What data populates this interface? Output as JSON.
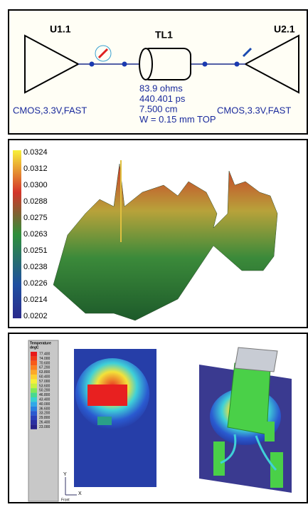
{
  "schematic": {
    "driver": "U1.1",
    "line": "TL1",
    "receiver": "U2.1",
    "line_props": [
      "83.9 ohms",
      "440.401 ps",
      "7.500 cm",
      "W = 0.15 mm TOP"
    ],
    "driver_model": "CMOS,3.3V,FAST",
    "receiver_model": "CMOS,3.3V,FAST"
  },
  "surface_plot": {
    "scale": [
      "0.0324",
      "0.0312",
      "0.0300",
      "0.0288",
      "0.0275",
      "0.0263",
      "0.0251",
      "0.0238",
      "0.0226",
      "0.0214",
      "0.0202"
    ]
  },
  "thermal": {
    "legend_title": "Temperature",
    "legend_unit": "degC",
    "scale": [
      "77.400",
      "74.000",
      "70.600",
      "67.200",
      "63.800",
      "60.400",
      "57.000",
      "53.600",
      "50.200",
      "46.800",
      "43.400",
      "40.000",
      "36.600",
      "33.200",
      "29.800",
      "26.400",
      "23.000"
    ],
    "axis_y": "Y",
    "axis_x": "X",
    "view": "Front"
  }
}
